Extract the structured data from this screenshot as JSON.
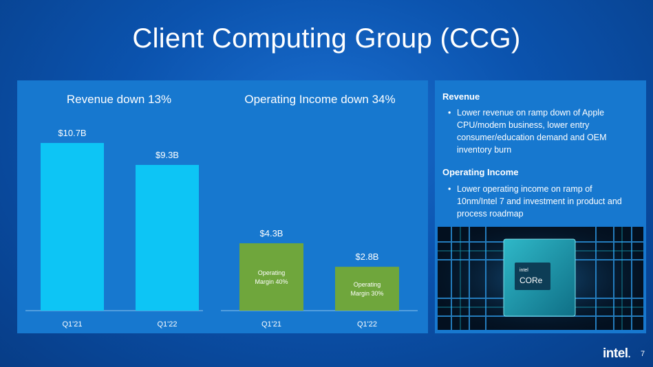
{
  "slide": {
    "title": "Client Computing Group (CCG)",
    "page_number": "7",
    "brand": "intel"
  },
  "chart_data": [
    {
      "type": "bar",
      "title": "Revenue down 13%",
      "categories": [
        "Q1'21",
        "Q1'22"
      ],
      "values": [
        10.7,
        9.3
      ],
      "value_labels": [
        "$10.7B",
        "$9.3B"
      ],
      "unit": "$B",
      "color": "#0dc5f5",
      "ylim": [
        0,
        12.5
      ],
      "grid": false
    },
    {
      "type": "bar",
      "title": "Operating Income down 34%",
      "categories": [
        "Q1'21",
        "Q1'22"
      ],
      "values": [
        4.3,
        2.8
      ],
      "value_labels": [
        "$4.3B",
        "$2.8B"
      ],
      "bar_annotations": [
        [
          "Operating",
          "Margin 40%"
        ],
        [
          "Operating",
          "Margin 30%"
        ]
      ],
      "unit": "$B",
      "color": "#6fa63c",
      "ylim": [
        0,
        12.5
      ],
      "grid": false
    }
  ],
  "notes": {
    "revenue_heading": "Revenue",
    "revenue_bullet": "Lower revenue on ramp down of Apple CPU/modem business, lower entry consumer/education demand and OEM inventory burn",
    "income_heading": "Operating Income",
    "income_bullet": "Lower operating income on ramp of 10nm/Intel 7 and investment in product and process roadmap",
    "bullet_char": "•",
    "chip_brand": "intel",
    "chip_name": "CORe"
  }
}
